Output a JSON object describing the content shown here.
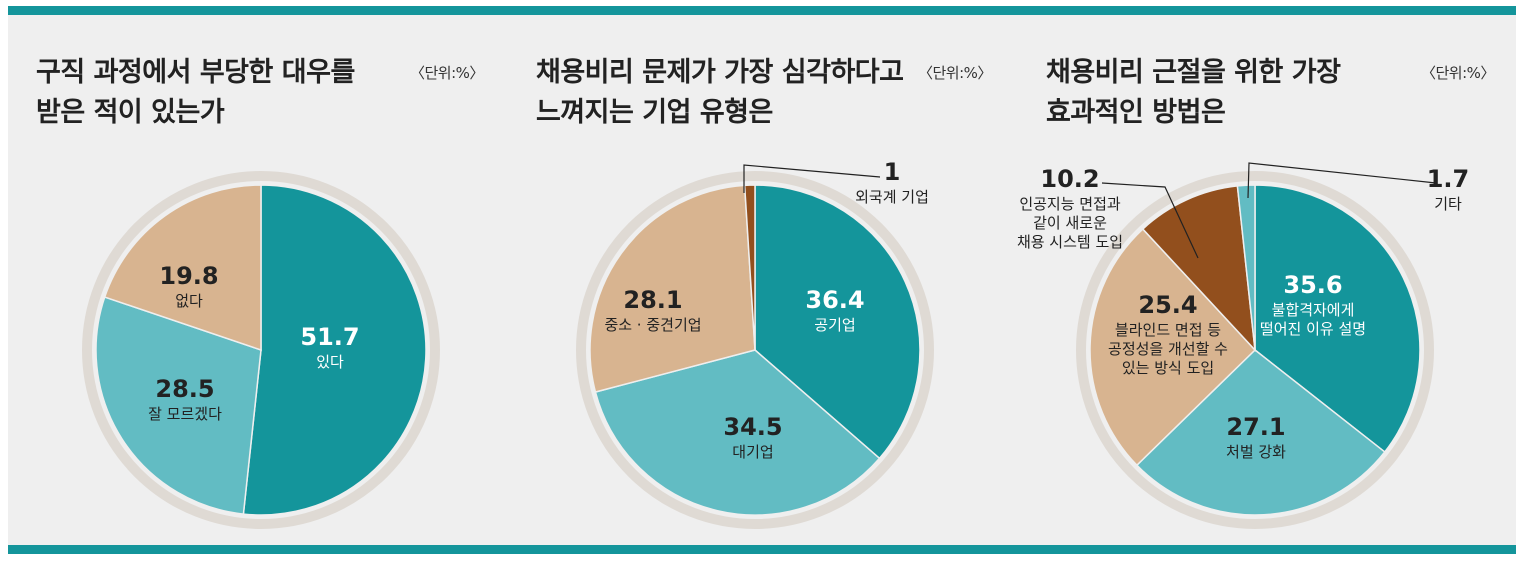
{
  "colors": {
    "frame_bg": "#efefef",
    "accent_bar": "#14959b",
    "teal_dark": "#14959b",
    "teal_light": "#62bcc3",
    "tan": "#d8b490",
    "brown": "#924f1d",
    "rim": "#dfdad4",
    "rim_outer_teal": "#c8e1e3"
  },
  "panels": [
    {
      "title_line1": "구직 과정에서 부당한 대우를",
      "title_line2": "받은 적이 있는가",
      "unit": "〈단위:%〉"
    },
    {
      "title_line1": "채용비리 문제가 가장 심각하다고",
      "title_line2": "느껴지는 기업 유형은",
      "unit": "〈단위:%〉"
    },
    {
      "title_line1": "채용비리 근절을 위한 가장",
      "title_line2": "효과적인 방법은",
      "unit": "〈단위:%〉"
    }
  ],
  "chart_data": [
    {
      "type": "pie",
      "title": "구직 과정에서 부당한 대우를 받은 적이 있는가",
      "unit": "%",
      "slices": [
        {
          "label": "있다",
          "value": 51.7,
          "color": "#14959b"
        },
        {
          "label": "잘 모르겠다",
          "value": 28.5,
          "color": "#62bcc3"
        },
        {
          "label": "없다",
          "value": 19.8,
          "color": "#d8b490"
        }
      ]
    },
    {
      "type": "pie",
      "title": "채용비리 문제가 가장 심각하다고 느껴지는 기업 유형은",
      "unit": "%",
      "slices": [
        {
          "label": "공기업",
          "value": 36.4,
          "color": "#14959b"
        },
        {
          "label": "대기업",
          "value": 34.5,
          "color": "#62bcc3"
        },
        {
          "label": "중소 · 중견기업",
          "value": 28.1,
          "color": "#d8b490"
        },
        {
          "label": "외국계 기업",
          "value": 1,
          "color": "#924f1d"
        }
      ]
    },
    {
      "type": "pie",
      "title": "채용비리 근절을 위한 가장 효과적인 방법은",
      "unit": "%",
      "slices": [
        {
          "label": "불합격자에게 떨어진 이유 설명",
          "value": 35.6,
          "color": "#14959b"
        },
        {
          "label": "처벌 강화",
          "value": 27.1,
          "color": "#62bcc3"
        },
        {
          "label": "블라인드 면접 등 공정성을 개선할 수 있는 방식 도입",
          "value": 25.4,
          "color": "#d8b490"
        },
        {
          "label": "인공지능 면접과 같이 새로운 채용 시스템 도입",
          "value": 10.2,
          "color": "#924f1d"
        },
        {
          "label": "기타",
          "value": 1.7,
          "color": "#62bcc3"
        }
      ]
    }
  ]
}
